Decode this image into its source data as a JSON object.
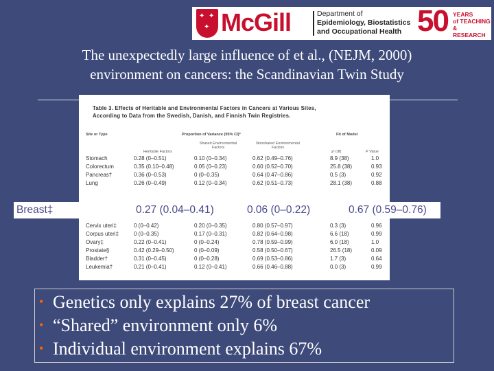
{
  "logo": {
    "name": "McGill",
    "department": [
      "Department of",
      "Epidemiology, Biostatistics",
      "and Occupational Health"
    ],
    "anniversary_number": "50",
    "anniversary_text": [
      "YEARS",
      "of TEACHING",
      "& RESEARCH"
    ],
    "brand_color": "#c8102e"
  },
  "title": {
    "line1": "The unexpectedly large influence of et al., (NEJM, 2000)",
    "line2": "environment on cancers: the Scandinavian Twin Study"
  },
  "table": {
    "caption_line1": "Table 3. Effects of Heritable and Environmental Factors in Cancers at Various Sites,",
    "caption_line2": "According to Data from the Swedish, Danish, and Finnish Twin Registries.",
    "header_site": "Site or Type",
    "header_proportion": "Proportion of Variance (95% CI)*",
    "header_fit": "Fit of Model",
    "sub_heritable": "Heritable Factors",
    "sub_shared": "Shared Environmental Factors",
    "sub_nonshared": "Nonshared Environmental Factors",
    "sub_chi": "χ² (df)",
    "sub_p": "P Value",
    "rows_top": [
      {
        "site": "Stomach",
        "heritable": "0.28 (0–0.51)",
        "shared": "0.10 (0–0.34)",
        "nonshared": "0.62 (0.49–0.76)",
        "chi": "8.9 (38)",
        "p": "1.0"
      },
      {
        "site": "Colorectum",
        "heritable": "0.35 (0.10–0.48)",
        "shared": "0.05 (0–0.23)",
        "nonshared": "0.60 (0.52–0.70)",
        "chi": "25.8 (38)",
        "p": "0.93"
      },
      {
        "site": "Pancreas†",
        "heritable": "0.36 (0–0.53)",
        "shared": "0 (0–0.35)",
        "nonshared": "0.64 (0.47–0.86)",
        "chi": "0.5 (3)",
        "p": "0.92"
      },
      {
        "site": "Lung",
        "heritable": "0.26 (0–0.49)",
        "shared": "0.12 (0–0.34)",
        "nonshared": "0.62 (0.51–0.73)",
        "chi": "28.1 (38)",
        "p": "0.88"
      }
    ],
    "rows_bottom": [
      {
        "site": "Cervix uteri‡",
        "heritable": "0 (0–0.42)",
        "shared": "0.20 (0–0.35)",
        "nonshared": "0.80 (0.57–0.97)",
        "chi": "0.3 (3)",
        "p": "0.96"
      },
      {
        "site": "Corpus uteri‡",
        "heritable": "0 (0–0.35)",
        "shared": "0.17 (0–0.31)",
        "nonshared": "0.82 (0.64–0.98)",
        "chi": "6.6 (18)",
        "p": "0.99"
      },
      {
        "site": "Ovary‡",
        "heritable": "0.22 (0–0.41)",
        "shared": "0 (0–0.24)",
        "nonshared": "0.78 (0.59–0.99)",
        "chi": "6.0 (18)",
        "p": "1.0"
      },
      {
        "site": "Prostate§",
        "heritable": "0.42 (0.29–0.50)",
        "shared": "0 (0–0.09)",
        "nonshared": "0.58 (0.50–0.67)",
        "chi": "26.5 (18)",
        "p": "0.09"
      },
      {
        "site": "Bladder†",
        "heritable": "0.31 (0–0.45)",
        "shared": "0 (0–0.28)",
        "nonshared": "0.69 (0.53–0.86)",
        "chi": "1.7 (3)",
        "p": "0.64"
      },
      {
        "site": "Leukemia†",
        "heritable": "0.21 (0–0.41)",
        "shared": "0.12 (0–0.41)",
        "nonshared": "0.66 (0.46–0.88)",
        "chi": "0.0 (3)",
        "p": "0.99"
      }
    ]
  },
  "breast_row": {
    "site": "Breast‡",
    "heritable": "0.27 (0.04–0.41)",
    "shared": "0.06 (0–0.22)",
    "nonshared": "0.67 (0.59–0.76)"
  },
  "bullets": [
    "Genetics only explains 27% of breast cancer",
    "“Shared” environment only 6%",
    "Individual environment explains 67%"
  ],
  "colors": {
    "background": "#3d4a7a",
    "bullet_marker": "#ff6600",
    "breast_text": "#4a4a8a"
  }
}
